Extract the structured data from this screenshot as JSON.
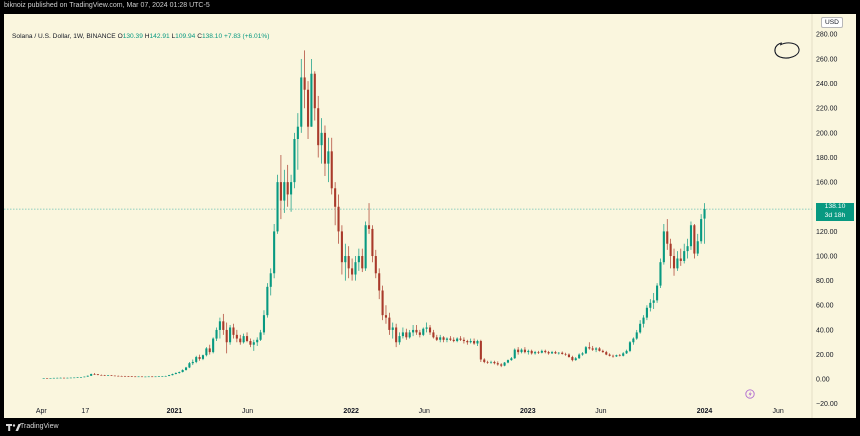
{
  "header": {
    "publisher": "biknoiz published on TradingView.com, Mar 07, 2024 01:28 UTC-5"
  },
  "legend": {
    "symbol": "Solana / U.S. Dollar, 1W, BINANCE",
    "o_label": "O",
    "o_value": "130.39",
    "h_label": "H",
    "h_value": "142.91",
    "l_label": "L",
    "l_value": "109.94",
    "c_label": "C",
    "c_value": "138.10",
    "change": "+7.83 (+6.01%)"
  },
  "axis": {
    "currency": "USD"
  },
  "price_tag": {
    "price": "138.10",
    "countdown": "3d 18h"
  },
  "footer": {
    "brand": "TradingView"
  },
  "colors": {
    "up": "#089981",
    "down": "#a93a2b",
    "background": "#faf6de",
    "price_line": "#6fc2b4"
  },
  "chart_data": {
    "type": "candlestick",
    "title": "Solana / U.S. Dollar, 1W, BINANCE",
    "ylim": [
      -25,
      290
    ],
    "y_ticks": [
      -20,
      0,
      20,
      40,
      60,
      80,
      100,
      120,
      140,
      160,
      180,
      200,
      220,
      240,
      260,
      280
    ],
    "y_tick_labels": [
      "−20.00",
      "0.00",
      "20.00",
      "40.00",
      "60.00",
      "80.00",
      "100.00",
      "120.00",
      "140.00",
      "160.00",
      "180.00",
      "200.00",
      "220.00",
      "240.00",
      "260.00",
      "280.00"
    ],
    "x_ticks": [
      "Apr",
      "17",
      "2021",
      "Jun",
      "2022",
      "Jun",
      "2023",
      "Jun",
      "2024",
      "Jun"
    ],
    "x_tick_positions": [
      "2020-04-01",
      "2020-07-01",
      "2021-01-01",
      "2021-06-01",
      "2022-01-01",
      "2022-06-01",
      "2023-01-01",
      "2023-06-01",
      "2024-01-01",
      "2024-06-01"
    ],
    "x_range": [
      "2020-01-15",
      "2024-08-10"
    ],
    "start_date": "2020-04-06",
    "interval": "1W",
    "last_price": 138.1,
    "ohlc": [
      [
        0.95,
        1.0,
        0.9,
        0.96
      ],
      [
        0.96,
        1.0,
        0.85,
        0.9
      ],
      [
        0.9,
        1.0,
        0.85,
        0.95
      ],
      [
        0.95,
        1.1,
        0.9,
        1.05
      ],
      [
        1.05,
        1.2,
        1.0,
        1.1
      ],
      [
        1.1,
        1.25,
        1.0,
        1.15
      ],
      [
        1.15,
        1.2,
        1.0,
        1.05
      ],
      [
        1.05,
        1.2,
        1.0,
        1.15
      ],
      [
        1.15,
        1.3,
        1.1,
        1.25
      ],
      [
        1.25,
        1.4,
        1.2,
        1.35
      ],
      [
        1.35,
        1.6,
        1.3,
        1.55
      ],
      [
        1.55,
        1.8,
        1.4,
        1.7
      ],
      [
        1.7,
        2.2,
        1.6,
        2.1
      ],
      [
        2.1,
        3.0,
        2.0,
        2.8
      ],
      [
        2.8,
        4.5,
        2.6,
        4.2
      ],
      [
        4.2,
        5.0,
        3.5,
        4.0
      ],
      [
        4.0,
        4.2,
        3.2,
        3.4
      ],
      [
        3.4,
        3.8,
        3.0,
        3.2
      ],
      [
        3.2,
        3.5,
        2.8,
        3.0
      ],
      [
        3.0,
        3.3,
        2.7,
        3.1
      ],
      [
        3.1,
        3.3,
        2.8,
        2.9
      ],
      [
        2.9,
        3.0,
        2.6,
        2.7
      ],
      [
        2.7,
        2.9,
        2.4,
        2.6
      ],
      [
        2.6,
        2.8,
        2.3,
        2.5
      ],
      [
        2.5,
        2.7,
        2.3,
        2.4
      ],
      [
        2.4,
        2.6,
        2.2,
        2.3
      ],
      [
        2.3,
        2.5,
        2.1,
        2.2
      ],
      [
        2.2,
        2.4,
        2.0,
        2.1
      ],
      [
        2.1,
        2.3,
        2.0,
        2.2
      ],
      [
        2.2,
        2.3,
        1.9,
        2.0
      ],
      [
        2.0,
        2.2,
        1.9,
        2.1
      ],
      [
        2.1,
        2.3,
        2.0,
        2.2
      ],
      [
        2.2,
        2.4,
        2.0,
        2.1
      ],
      [
        2.1,
        2.3,
        2.0,
        2.2
      ],
      [
        2.2,
        2.4,
        2.1,
        2.3
      ],
      [
        2.3,
        2.6,
        2.2,
        2.5
      ],
      [
        2.5,
        2.8,
        2.3,
        2.6
      ],
      [
        2.6,
        3.5,
        2.5,
        3.3
      ],
      [
        3.3,
        4.5,
        3.1,
        4.2
      ],
      [
        4.2,
        5.5,
        4.0,
        5.0
      ],
      [
        5.0,
        6.2,
        4.6,
        5.8
      ],
      [
        5.8,
        8.0,
        5.5,
        7.5
      ],
      [
        7.5,
        10.0,
        7.0,
        9.5
      ],
      [
        9.5,
        14.0,
        9.0,
        13.0
      ],
      [
        13.0,
        16.0,
        11.5,
        14.0
      ],
      [
        14.0,
        19.0,
        13.0,
        18.0
      ],
      [
        18.0,
        20.0,
        15.0,
        16.5
      ],
      [
        16.5,
        20.0,
        15.5,
        19.5
      ],
      [
        19.5,
        26.0,
        18.5,
        25.0
      ],
      [
        25.0,
        28.0,
        20.0,
        22.0
      ],
      [
        22.0,
        34.0,
        21.0,
        33.0
      ],
      [
        33.0,
        42.0,
        31.0,
        40.0
      ],
      [
        40.0,
        50.0,
        33.0,
        47.0
      ],
      [
        47.0,
        53.0,
        36.0,
        40.0
      ],
      [
        40.0,
        46.0,
        21.0,
        30.0
      ],
      [
        30.0,
        44.0,
        28.0,
        42.0
      ],
      [
        42.0,
        45.0,
        33.0,
        36.0
      ],
      [
        36.0,
        40.0,
        30.0,
        33.0
      ],
      [
        33.0,
        36.0,
        28.0,
        30.0
      ],
      [
        30.0,
        37.0,
        29.0,
        35.0
      ],
      [
        35.0,
        38.0,
        30.0,
        31.0
      ],
      [
        31.0,
        33.0,
        26.0,
        28.0
      ],
      [
        28.0,
        32.0,
        23.0,
        30.0
      ],
      [
        30.0,
        34.0,
        27.0,
        32.0
      ],
      [
        32.0,
        40.0,
        31.0,
        38.0
      ],
      [
        38.0,
        56.0,
        36.0,
        52.0
      ],
      [
        52.0,
        78.0,
        50.0,
        75.0
      ],
      [
        75.0,
        90.0,
        68.0,
        86.0
      ],
      [
        86.0,
        126.0,
        82.0,
        120.0
      ],
      [
        120.0,
        166.0,
        118.0,
        160.0
      ],
      [
        160.0,
        182.0,
        130.0,
        145.0
      ],
      [
        145.0,
        170.0,
        135.0,
        160.0
      ],
      [
        160.0,
        174.0,
        140.0,
        150.0
      ],
      [
        150.0,
        166.0,
        136.0,
        160.0
      ],
      [
        160.0,
        200.0,
        155.0,
        195.0
      ],
      [
        195.0,
        216.0,
        170.0,
        205.0
      ],
      [
        205.0,
        260.0,
        200.0,
        245.0
      ],
      [
        245.0,
        267.0,
        220.0,
        235.0
      ],
      [
        235.0,
        242.0,
        195.0,
        205.0
      ],
      [
        205.0,
        260.0,
        205.0,
        248.0
      ],
      [
        248.0,
        250.0,
        210.0,
        220.0
      ],
      [
        220.0,
        230.0,
        180.0,
        190.0
      ],
      [
        190.0,
        212.0,
        175.0,
        200.0
      ],
      [
        200.0,
        206.0,
        165.0,
        175.0
      ],
      [
        175.0,
        196.0,
        160.0,
        185.0
      ],
      [
        185.0,
        196.0,
        150.0,
        155.0
      ],
      [
        155.0,
        160.0,
        125.0,
        140.0
      ],
      [
        140.0,
        150.0,
        110.0,
        120.0
      ],
      [
        120.0,
        125.0,
        85.0,
        95.0
      ],
      [
        95.0,
        110.0,
        80.0,
        100.0
      ],
      [
        100.0,
        108.0,
        82.0,
        90.0
      ],
      [
        90.0,
        98.0,
        80.0,
        85.0
      ],
      [
        85.0,
        100.0,
        80.0,
        95.0
      ],
      [
        95.0,
        106.0,
        88.0,
        100.0
      ],
      [
        100.0,
        106.0,
        87.0,
        90.0
      ],
      [
        90.0,
        128.0,
        88.0,
        125.0
      ],
      [
        125.0,
        143.0,
        118.0,
        122.0
      ],
      [
        122.0,
        125.0,
        95.0,
        100.0
      ],
      [
        100.0,
        105.0,
        82.0,
        86.0
      ],
      [
        86.0,
        90.0,
        65.0,
        72.0
      ],
      [
        72.0,
        76.0,
        48.0,
        52.0
      ],
      [
        52.0,
        60.0,
        45.0,
        50.0
      ],
      [
        50.0,
        54.0,
        36.0,
        40.0
      ],
      [
        40.0,
        46.0,
        33.0,
        42.0
      ],
      [
        42.0,
        45.0,
        26.0,
        30.0
      ],
      [
        30.0,
        38.0,
        28.0,
        35.0
      ],
      [
        35.0,
        42.0,
        33.0,
        38.0
      ],
      [
        38.0,
        41.0,
        32.0,
        34.0
      ],
      [
        34.0,
        40.0,
        33.0,
        38.0
      ],
      [
        38.0,
        44.0,
        35.0,
        40.0
      ],
      [
        40.0,
        44.0,
        36.0,
        38.0
      ],
      [
        38.0,
        40.0,
        34.0,
        36.0
      ],
      [
        36.0,
        42.0,
        35.0,
        41.0
      ],
      [
        41.0,
        46.0,
        38.0,
        42.0
      ],
      [
        42.0,
        44.0,
        36.0,
        38.0
      ],
      [
        38.0,
        40.0,
        33.0,
        34.0
      ],
      [
        34.0,
        36.0,
        31.0,
        32.0
      ],
      [
        32.0,
        36.0,
        30.0,
        34.0
      ],
      [
        34.0,
        35.0,
        30.0,
        32.0
      ],
      [
        32.0,
        34.0,
        30.0,
        33.0
      ],
      [
        33.0,
        35.0,
        31.0,
        32.0
      ],
      [
        32.0,
        34.0,
        30.0,
        31.0
      ],
      [
        31.0,
        34.0,
        30.0,
        33.0
      ],
      [
        33.0,
        35.0,
        31.0,
        32.0
      ],
      [
        32.0,
        34.0,
        29.0,
        31.0
      ],
      [
        31.0,
        32.0,
        28.0,
        30.0
      ],
      [
        30.0,
        33.0,
        29.0,
        31.0
      ],
      [
        31.0,
        33.0,
        28.0,
        29.0
      ],
      [
        29.0,
        32.0,
        27.0,
        31.0
      ],
      [
        31.0,
        32.0,
        14.0,
        16.0
      ],
      [
        16.0,
        17.0,
        13.0,
        14.0
      ],
      [
        14.0,
        15.0,
        12.5,
        13.5
      ],
      [
        13.5,
        15.0,
        12.5,
        14.0
      ],
      [
        14.0,
        15.0,
        12.0,
        13.0
      ],
      [
        13.0,
        14.5,
        11.0,
        12.0
      ],
      [
        12.0,
        13.0,
        9.8,
        11.0
      ],
      [
        11.0,
        14.0,
        10.5,
        13.5
      ],
      [
        13.5,
        16.0,
        13.0,
        15.5
      ],
      [
        15.5,
        18.0,
        15.0,
        17.0
      ],
      [
        17.0,
        25.0,
        16.5,
        24.0
      ],
      [
        24.0,
        26.0,
        20.0,
        22.0
      ],
      [
        22.0,
        25.0,
        21.0,
        24.0
      ],
      [
        24.0,
        26.0,
        21.0,
        22.0
      ],
      [
        22.0,
        24.0,
        20.0,
        23.0
      ],
      [
        23.0,
        24.0,
        20.0,
        21.0
      ],
      [
        21.0,
        23.0,
        20.0,
        22.0
      ],
      [
        22.0,
        23.0,
        20.5,
        21.5
      ],
      [
        21.5,
        24.0,
        21.0,
        23.0
      ],
      [
        23.0,
        24.0,
        21.0,
        22.0
      ],
      [
        22.0,
        23.0,
        20.0,
        21.0
      ],
      [
        21.0,
        23.0,
        20.5,
        22.0
      ],
      [
        22.0,
        23.0,
        20.5,
        21.0
      ],
      [
        21.0,
        22.0,
        20.0,
        21.5
      ],
      [
        21.5,
        22.5,
        20.0,
        20.5
      ],
      [
        20.5,
        21.5,
        19.0,
        20.0
      ],
      [
        20.0,
        21.0,
        17.5,
        18.0
      ],
      [
        18.0,
        19.0,
        14.5,
        15.5
      ],
      [
        15.5,
        18.0,
        15.0,
        17.0
      ],
      [
        17.0,
        21.0,
        16.5,
        20.0
      ],
      [
        20.0,
        22.0,
        19.0,
        21.0
      ],
      [
        21.0,
        27.0,
        20.5,
        26.0
      ],
      [
        26.0,
        30.0,
        24.0,
        25.0
      ],
      [
        25.0,
        27.0,
        23.0,
        24.0
      ],
      [
        24.0,
        26.0,
        22.0,
        25.0
      ],
      [
        25.0,
        26.0,
        22.5,
        23.0
      ],
      [
        23.0,
        24.0,
        21.5,
        22.0
      ],
      [
        22.0,
        23.0,
        19.5,
        20.0
      ],
      [
        20.0,
        21.0,
        18.5,
        19.0
      ],
      [
        19.0,
        20.0,
        17.5,
        18.5
      ],
      [
        18.5,
        20.0,
        18.0,
        19.5
      ],
      [
        19.5,
        20.5,
        18.5,
        19.0
      ],
      [
        19.0,
        22.0,
        18.5,
        21.0
      ],
      [
        21.0,
        24.0,
        20.5,
        23.0
      ],
      [
        23.0,
        31.0,
        22.0,
        30.0
      ],
      [
        30.0,
        34.0,
        28.0,
        33.0
      ],
      [
        33.0,
        40.0,
        32.0,
        38.0
      ],
      [
        38.0,
        48.0,
        37.0,
        45.0
      ],
      [
        45.0,
        52.0,
        42.0,
        50.0
      ],
      [
        50.0,
        60.0,
        48.0,
        58.0
      ],
      [
        58.0,
        65.0,
        55.0,
        62.0
      ],
      [
        62.0,
        70.0,
        57.0,
        64.0
      ],
      [
        64.0,
        78.0,
        62.0,
        76.0
      ],
      [
        76.0,
        98.0,
        74.0,
        95.0
      ],
      [
        95.0,
        126.0,
        93.0,
        120.0
      ],
      [
        120.0,
        130.0,
        105.0,
        110.0
      ],
      [
        110.0,
        114.0,
        90.0,
        100.0
      ],
      [
        100.0,
        106.0,
        84.0,
        90.0
      ],
      [
        90.0,
        104.0,
        88.0,
        98.0
      ],
      [
        98.0,
        106.0,
        92.0,
        96.0
      ],
      [
        96.0,
        110.0,
        94.0,
        104.0
      ],
      [
        104.0,
        114.0,
        98.0,
        108.0
      ],
      [
        108.0,
        128.0,
        105.0,
        125.0
      ],
      [
        125.0,
        126.0,
        98.0,
        102.0
      ],
      [
        102.0,
        118.0,
        100.0,
        112.0
      ],
      [
        112.0,
        134.0,
        110.0,
        130.0
      ],
      [
        130.39,
        142.91,
        109.94,
        138.1
      ]
    ]
  }
}
